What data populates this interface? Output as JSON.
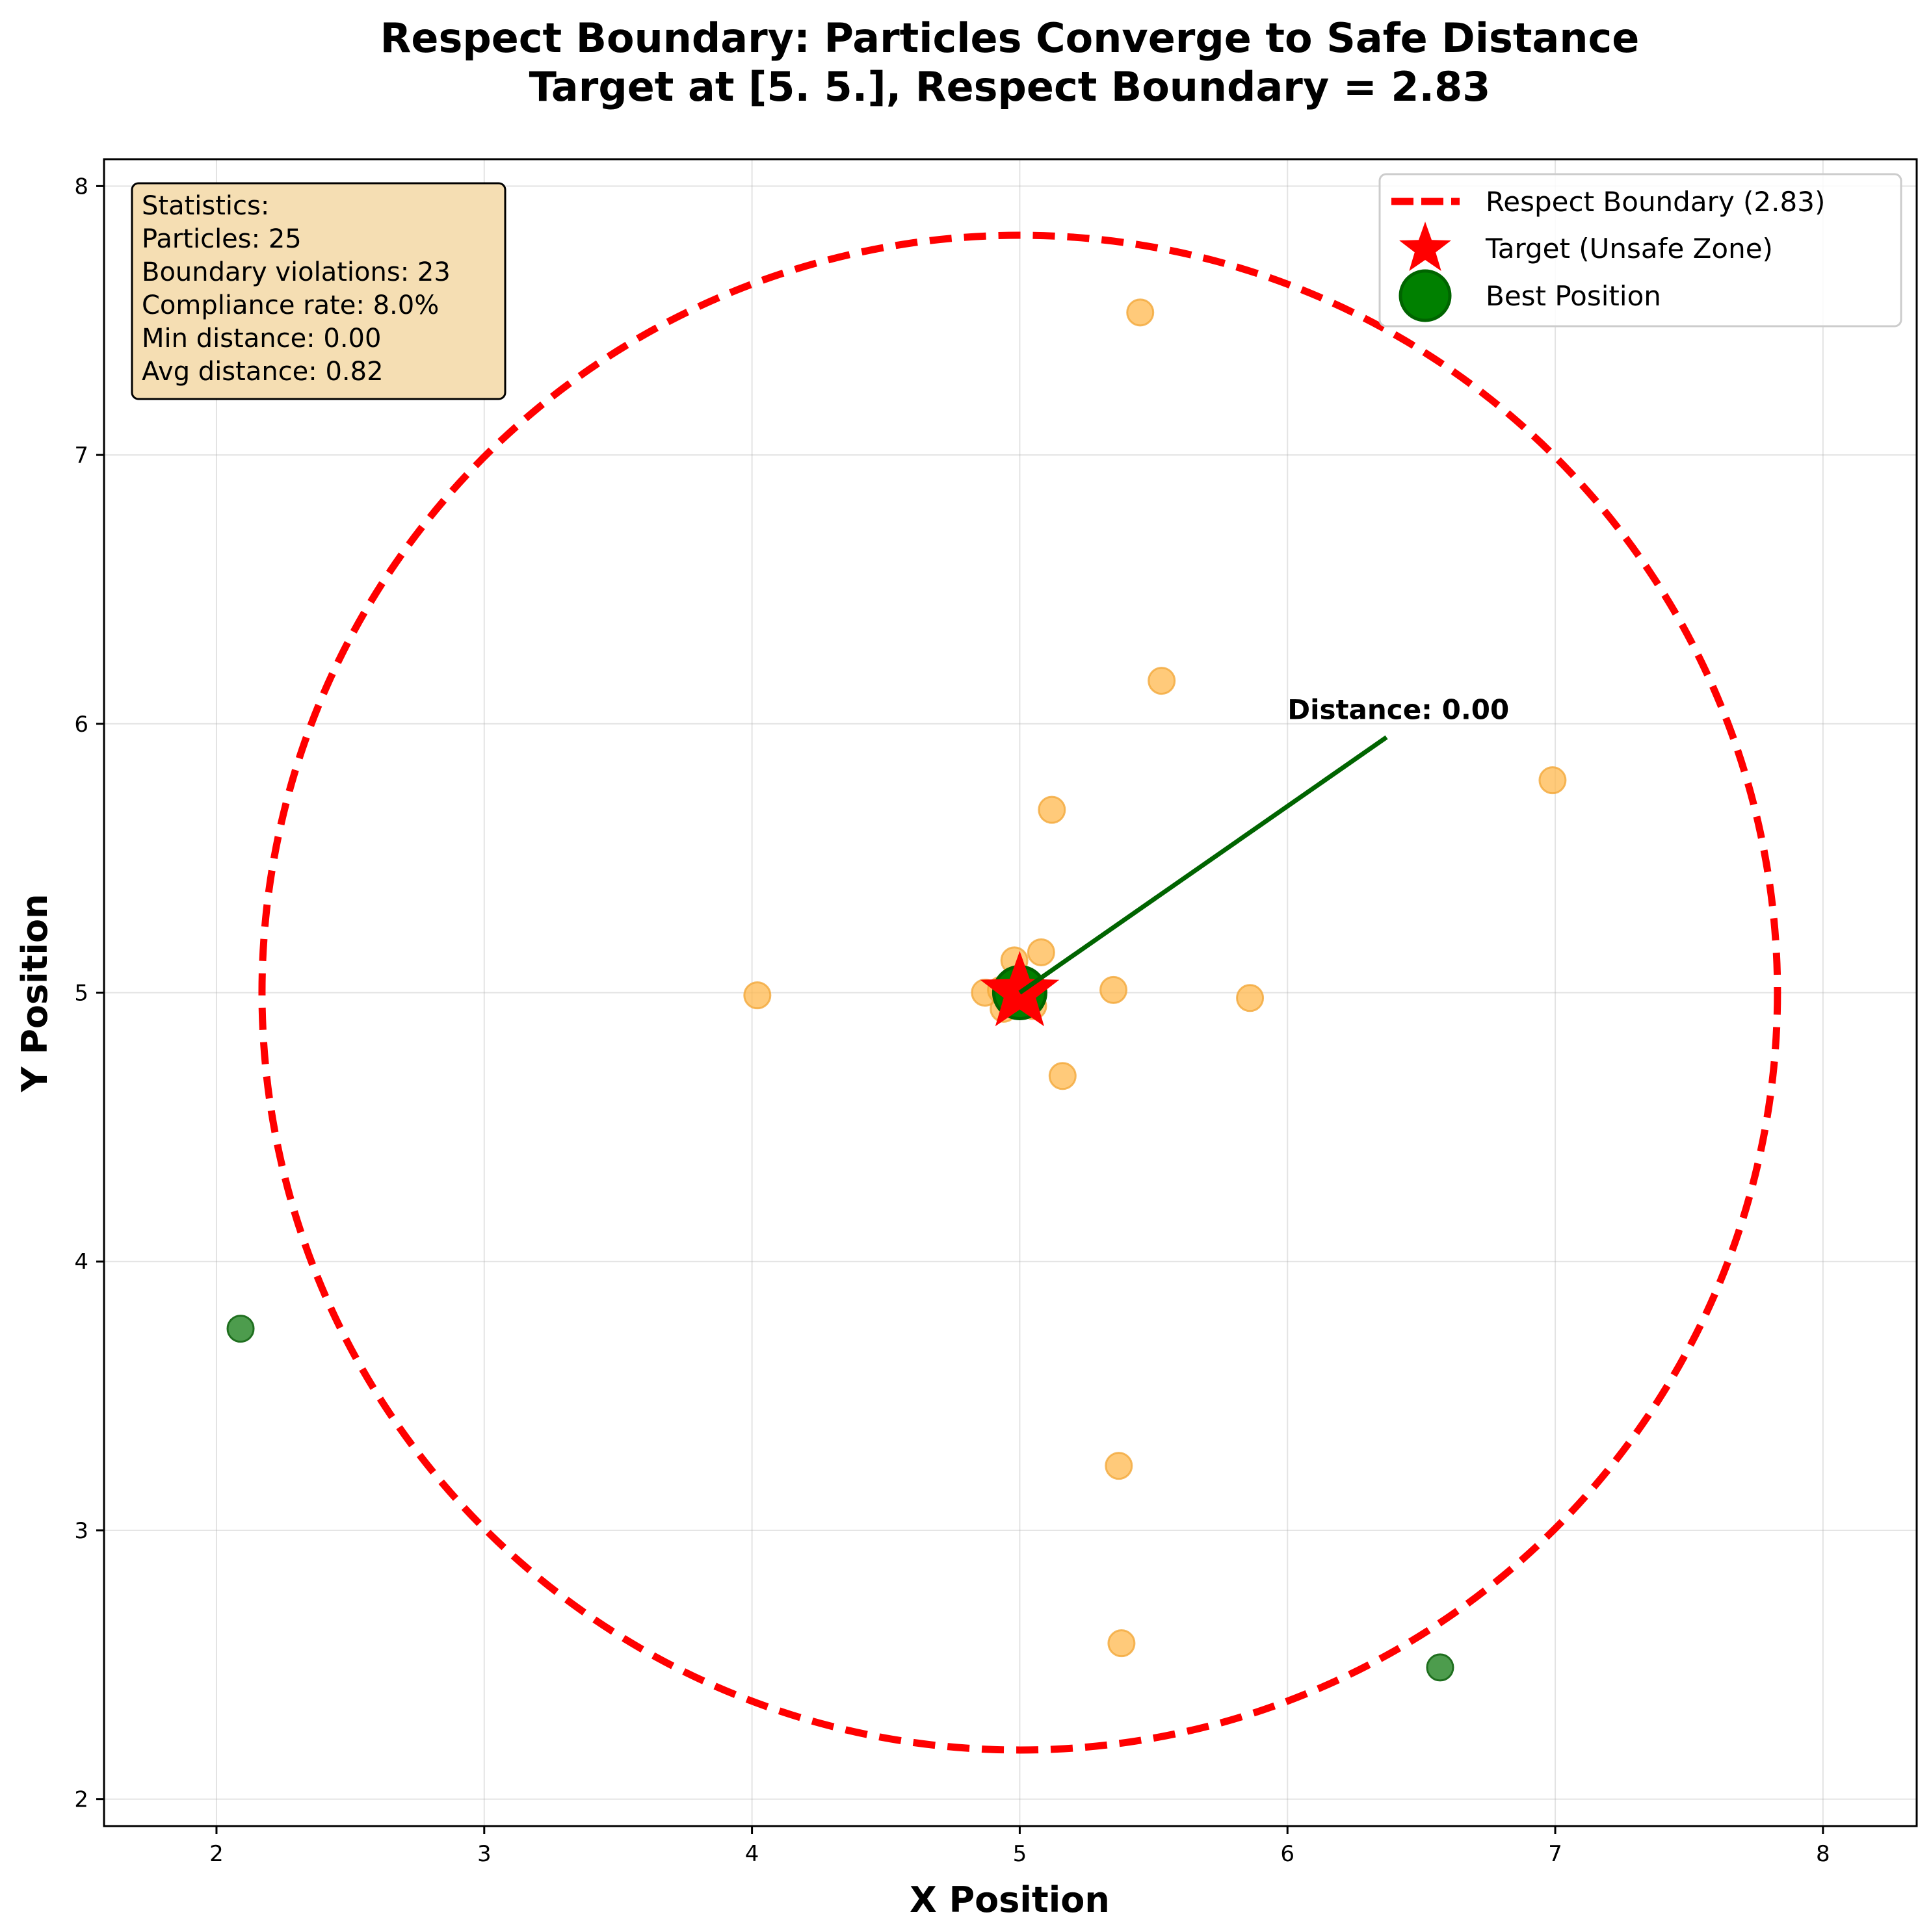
{
  "chart_data": {
    "type": "scatter",
    "title": "Respect Boundary: Particles Converge to Safe Distance",
    "subtitle": "Target at [5. 5.], Respect Boundary = 2.83",
    "xlabel": "X Position",
    "ylabel": "Y Position",
    "xlim": [
      1.58,
      8.35
    ],
    "ylim": [
      1.9,
      8.1
    ],
    "x_ticks": [
      "2",
      "3",
      "4",
      "5",
      "6",
      "7",
      "8"
    ],
    "y_ticks": [
      "2",
      "3",
      "4",
      "5",
      "6",
      "7",
      "8"
    ],
    "grid": true,
    "legend_position": "top-right",
    "legend": {
      "boundary": "Respect Boundary (2.83)",
      "target": "Target (Unsafe Zone)",
      "best": "Best Position"
    },
    "statistics": {
      "heading": "Statistics:",
      "particles": "Particles: 25",
      "violations": "Boundary violations: 23",
      "compliance": "Compliance rate: 8.0%",
      "min_distance": "Min distance: 0.00",
      "avg_distance": "Avg distance: 0.82"
    },
    "annotation": {
      "text": "Distance: 0.00",
      "from": [
        5.0,
        5.0
      ],
      "to": [
        6.37,
        5.95
      ]
    },
    "boundary_circle": {
      "center": [
        5.0,
        5.0
      ],
      "radius": 2.83
    },
    "target": [
      5.0,
      5.0
    ],
    "best_position": [
      5.0,
      5.0
    ],
    "violating_particles": [
      [
        5.45,
        7.53
      ],
      [
        5.53,
        6.16
      ],
      [
        6.99,
        5.79
      ],
      [
        5.12,
        5.68
      ],
      [
        4.02,
        4.99
      ],
      [
        4.98,
        5.12
      ],
      [
        5.08,
        5.15
      ],
      [
        4.87,
        5.0
      ],
      [
        4.94,
        4.94
      ],
      [
        4.97,
        5.03
      ],
      [
        5.02,
        4.97
      ],
      [
        5.0,
        5.0
      ],
      [
        4.96,
        4.98
      ],
      [
        5.03,
        5.02
      ],
      [
        4.99,
        4.96
      ],
      [
        5.01,
        5.04
      ],
      [
        5.35,
        5.01
      ],
      [
        5.86,
        4.98
      ],
      [
        5.16,
        4.69
      ],
      [
        5.37,
        3.24
      ],
      [
        5.38,
        2.58
      ],
      [
        4.93,
        5.01
      ],
      [
        5.05,
        4.95
      ]
    ],
    "compliant_particles": [
      [
        2.09,
        3.75
      ],
      [
        6.57,
        2.49
      ]
    ],
    "colors": {
      "boundary": "#ff0000",
      "target": "#ff0000",
      "best": "#008000",
      "violating": "#ffb84d",
      "compliant": "#2e8b2e",
      "annotation_line": "#006400",
      "stats_box_fill": "#f5deb3"
    }
  }
}
